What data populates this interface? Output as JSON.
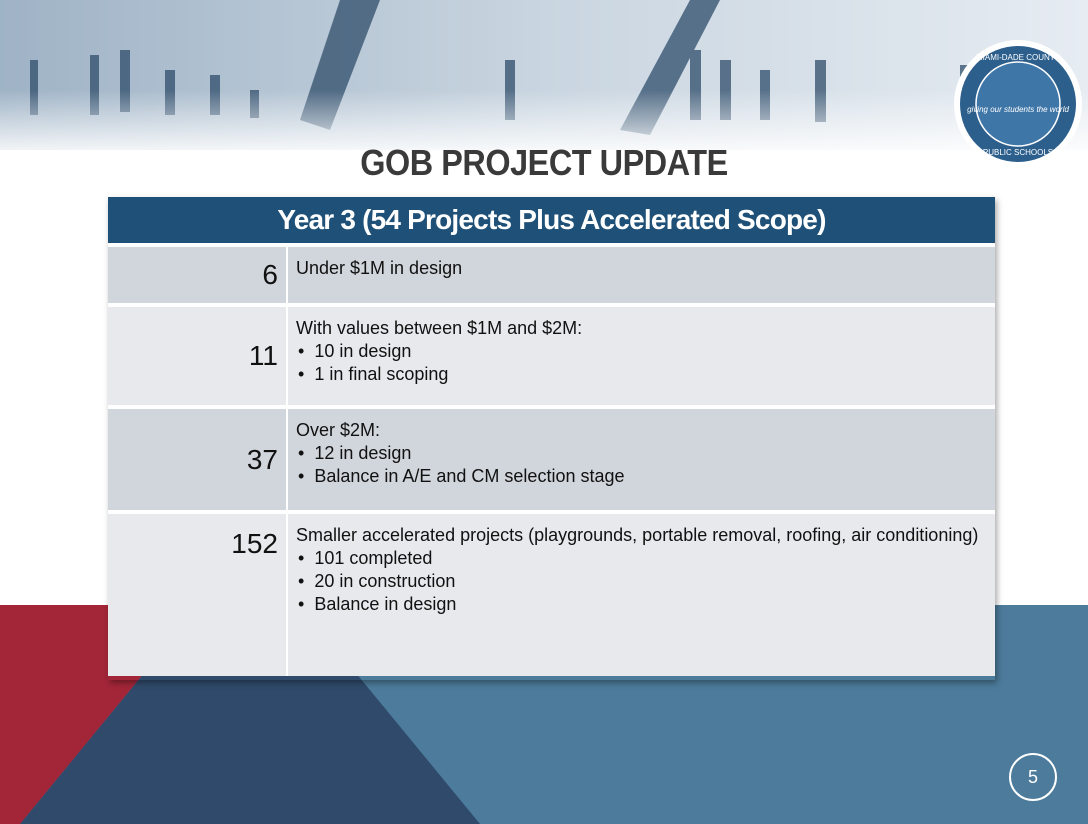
{
  "header": {
    "title": "GOB PROJECT UPDATE"
  },
  "logo": {
    "top": "MIAMI-DADE COUNTY",
    "motto": "giving our students the world",
    "bottom": "PUBLIC SCHOOLS"
  },
  "table": {
    "header": "Year 3 (54 Projects Plus Accelerated Scope)",
    "rows": [
      {
        "count": 6,
        "text": "Under $1M in design",
        "bullets": []
      },
      {
        "count": 11,
        "text": "With values between $1M and $2M:",
        "bullets": [
          "10 in design",
          "1 in final scoping"
        ]
      },
      {
        "count": 37,
        "text": "Over $2M:",
        "bullets": [
          "12 in design",
          "Balance in A/E and CM selection stage"
        ]
      },
      {
        "count": 152,
        "text": "Smaller accelerated projects (playgrounds, portable removal, roofing, air conditioning)",
        "bullets": [
          "101 completed",
          "20 in construction",
          "Balance in design"
        ]
      }
    ]
  },
  "footer": {
    "page": 5
  }
}
